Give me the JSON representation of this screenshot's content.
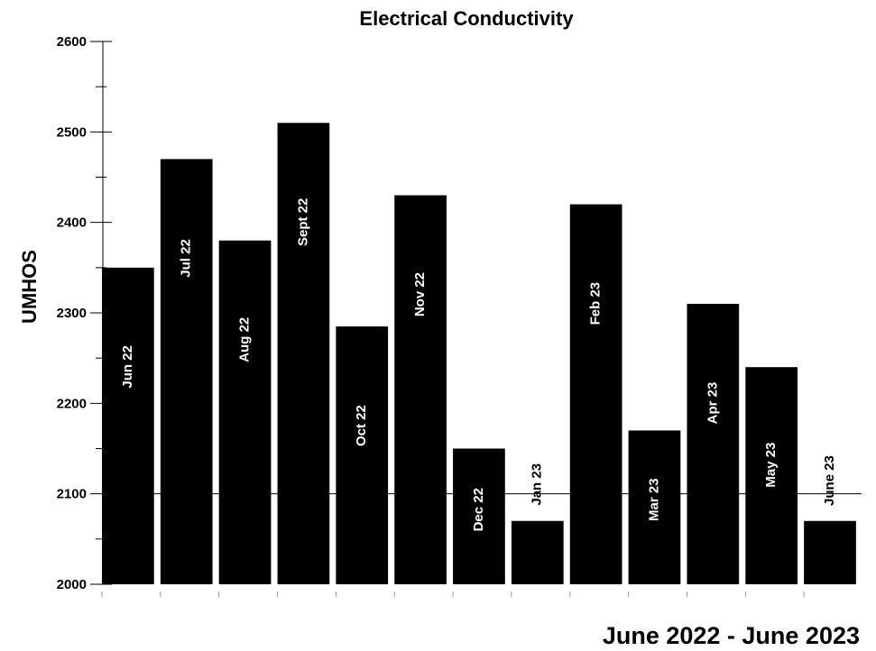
{
  "chart_data": {
    "type": "bar",
    "title": "Electrical Conductivity",
    "xlabel": "June 2022 - June 2023",
    "ylabel": "UMHOS",
    "ylim": [
      2000,
      2600
    ],
    "yticks": [
      2000,
      2100,
      2200,
      2300,
      2400,
      2500,
      2600
    ],
    "reference_line": 2100,
    "categories": [
      "Jun 22",
      "Jul 22",
      "Aug 22",
      "Sept 22",
      "Oct 22",
      "Nov 22",
      "Dec 22",
      "Jan 23",
      "Feb 23",
      "Mar 23",
      "Apr 23",
      "May 23",
      "June 23"
    ],
    "values": [
      2350,
      2470,
      2380,
      2510,
      2285,
      2430,
      2150,
      2070,
      2420,
      2170,
      2310,
      2240,
      2070
    ],
    "bar_color": "#000000",
    "label_color_inside": "#ffffff",
    "label_color_outside": "#000000"
  }
}
